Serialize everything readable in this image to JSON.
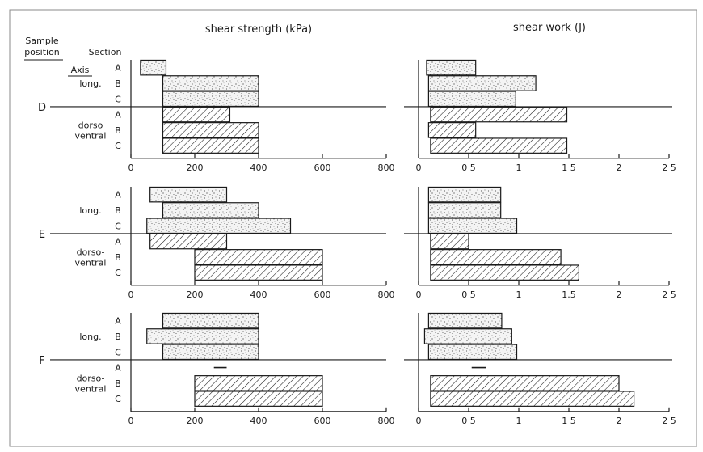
{
  "chart_data": {
    "type": "bar",
    "orientation": "horizontal",
    "header": {
      "sample_position": "Sample position",
      "section": "Section",
      "axis": "Axis"
    },
    "panels": [
      {
        "id": "shear_strength",
        "title": "shear strength (kPa)",
        "xlim": [
          0,
          800
        ],
        "ticks": [
          0,
          200,
          400,
          600,
          800
        ]
      },
      {
        "id": "shear_work",
        "title": "shear work (J)",
        "xlim": [
          0,
          2.5
        ],
        "ticks": [
          0,
          0.5,
          1,
          1.5,
          2,
          2.5
        ]
      }
    ],
    "tick_labels": {
      "shear_strength": [
        "0",
        "200",
        "400",
        "600",
        "800"
      ],
      "shear_work": [
        "0",
        "0 5",
        "1",
        "1 5",
        "2",
        "2 5"
      ],
      "shear_work_E": [
        "0",
        "0 5",
        "1",
        "1.5",
        "2",
        "2 5"
      ]
    },
    "groups": [
      {
        "position": "D",
        "axes": [
          {
            "label_lines": [
              "long."
            ],
            "fill": "stipple",
            "sections": [
              {
                "section": "A",
                "shear_strength": [
                  30,
                  110
                ],
                "shear_work": [
                  0.08,
                  0.57
                ]
              },
              {
                "section": "B",
                "shear_strength": [
                  100,
                  400
                ],
                "shear_work": [
                  0.1,
                  1.17
                ]
              },
              {
                "section": "C",
                "shear_strength": [
                  100,
                  400
                ],
                "shear_work": [
                  0.1,
                  0.97
                ]
              }
            ]
          },
          {
            "label_lines": [
              "dorso",
              "ventral"
            ],
            "fill": "hatch",
            "sections": [
              {
                "section": "A",
                "shear_strength": [
                  100,
                  310
                ],
                "shear_work": [
                  0.12,
                  1.48
                ]
              },
              {
                "section": "B",
                "shear_strength": [
                  100,
                  400
                ],
                "shear_work": [
                  0.1,
                  0.57
                ]
              },
              {
                "section": "C",
                "shear_strength": [
                  100,
                  400
                ],
                "shear_work": [
                  0.12,
                  1.48
                ]
              }
            ]
          }
        ]
      },
      {
        "position": "E",
        "axes": [
          {
            "label_lines": [
              "long."
            ],
            "fill": "stipple",
            "sections": [
              {
                "section": "A",
                "shear_strength": [
                  60,
                  300
                ],
                "shear_work": [
                  0.1,
                  0.82
                ]
              },
              {
                "section": "B",
                "shear_strength": [
                  100,
                  400
                ],
                "shear_work": [
                  0.1,
                  0.82
                ]
              },
              {
                "section": "C",
                "shear_strength": [
                  50,
                  500
                ],
                "shear_work": [
                  0.1,
                  0.98
                ]
              }
            ]
          },
          {
            "label_lines": [
              "dorso-",
              "ventral"
            ],
            "fill": "hatch",
            "sections": [
              {
                "section": "A",
                "shear_strength": [
                  60,
                  300
                ],
                "shear_work": [
                  0.12,
                  0.5
                ]
              },
              {
                "section": "B",
                "shear_strength": [
                  200,
                  600
                ],
                "shear_work": [
                  0.12,
                  1.42
                ]
              },
              {
                "section": "C",
                "shear_strength": [
                  200,
                  600
                ],
                "shear_work": [
                  0.12,
                  1.6
                ]
              }
            ]
          }
        ]
      },
      {
        "position": "F",
        "axes": [
          {
            "label_lines": [
              "long."
            ],
            "fill": "stipple",
            "sections": [
              {
                "section": "A",
                "shear_strength": [
                  100,
                  400
                ],
                "shear_work": [
                  0.1,
                  0.83
                ]
              },
              {
                "section": "B",
                "shear_strength": [
                  50,
                  400
                ],
                "shear_work": [
                  0.06,
                  0.93
                ]
              },
              {
                "section": "C",
                "shear_strength": [
                  100,
                  400
                ],
                "shear_work": [
                  0.1,
                  0.98
                ]
              }
            ]
          },
          {
            "label_lines": [
              "dorso-",
              "ventral"
            ],
            "fill": "hatch",
            "sections": [
              {
                "section": "A",
                "shear_strength": [
                  260,
                  300
                ],
                "shear_work": [
                  0.53,
                  0.67
                ],
                "dash": true
              },
              {
                "section": "B",
                "shear_strength": [
                  200,
                  600
                ],
                "shear_work": [
                  0.12,
                  2.0
                ]
              },
              {
                "section": "C",
                "shear_strength": [
                  200,
                  600
                ],
                "shear_work": [
                  0.12,
                  2.15
                ]
              }
            ]
          }
        ]
      }
    ]
  }
}
